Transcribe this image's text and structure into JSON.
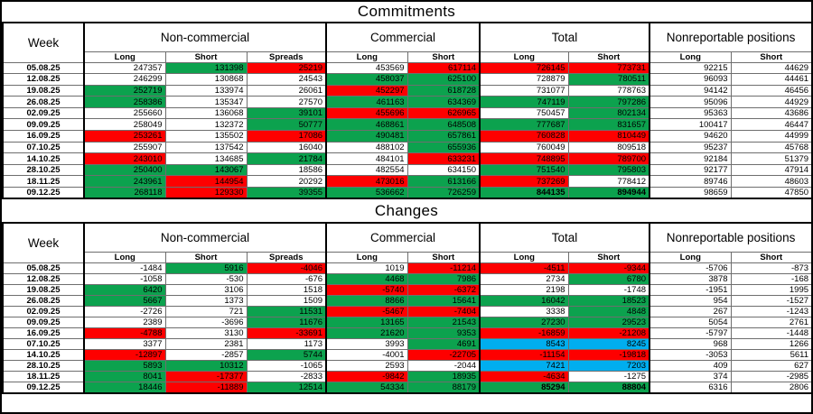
{
  "colors": {
    "green": "#0CA24E",
    "red": "#FE0000",
    "blue": "#00AEEF"
  },
  "column_headers": {
    "week": "Week",
    "groups": [
      "Non-commercial",
      "Commercial",
      "Total",
      "Nonreportable positions"
    ],
    "sub": [
      "Long",
      "Short",
      "Spreads",
      "Long",
      "Short",
      "Long",
      "Short",
      "Long",
      "Short"
    ]
  },
  "sections": [
    {
      "title": "Commitments",
      "rows": [
        {
          "week": "05.08.25",
          "cells": [
            [
              "247357",
              "w"
            ],
            [
              "131398",
              "g"
            ],
            [
              "25219",
              "r"
            ],
            [
              "453569",
              "w"
            ],
            [
              "617114",
              "r"
            ],
            [
              "726145",
              "r"
            ],
            [
              "773731",
              "r"
            ],
            [
              "92215",
              "w"
            ],
            [
              "44629",
              "w"
            ]
          ]
        },
        {
          "week": "12.08.25",
          "cells": [
            [
              "246299",
              "w"
            ],
            [
              "130868",
              "w"
            ],
            [
              "24543",
              "w"
            ],
            [
              "458037",
              "g"
            ],
            [
              "625100",
              "g"
            ],
            [
              "728879",
              "w"
            ],
            [
              "780511",
              "g"
            ],
            [
              "96093",
              "w"
            ],
            [
              "44461",
              "w"
            ]
          ]
        },
        {
          "week": "19.08.25",
          "cells": [
            [
              "252719",
              "g"
            ],
            [
              "133974",
              "w"
            ],
            [
              "26061",
              "w"
            ],
            [
              "452297",
              "r"
            ],
            [
              "618728",
              "g"
            ],
            [
              "731077",
              "w"
            ],
            [
              "778763",
              "w"
            ],
            [
              "94142",
              "w"
            ],
            [
              "46456",
              "w"
            ]
          ]
        },
        {
          "week": "26.08.25",
          "cells": [
            [
              "258386",
              "g"
            ],
            [
              "135347",
              "w"
            ],
            [
              "27570",
              "w"
            ],
            [
              "461163",
              "g"
            ],
            [
              "634369",
              "g"
            ],
            [
              "747119",
              "g"
            ],
            [
              "797286",
              "g"
            ],
            [
              "95096",
              "w"
            ],
            [
              "44929",
              "w"
            ]
          ]
        },
        {
          "week": "02.09.25",
          "cells": [
            [
              "255660",
              "w"
            ],
            [
              "136068",
              "w"
            ],
            [
              "39101",
              "g"
            ],
            [
              "455696",
              "r"
            ],
            [
              "626965",
              "r"
            ],
            [
              "750457",
              "w"
            ],
            [
              "802134",
              "g"
            ],
            [
              "95363",
              "w"
            ],
            [
              "43686",
              "w"
            ]
          ]
        },
        {
          "week": "09.09.25",
          "cells": [
            [
              "258049",
              "w"
            ],
            [
              "132372",
              "w"
            ],
            [
              "50777",
              "g"
            ],
            [
              "468861",
              "g"
            ],
            [
              "648508",
              "g"
            ],
            [
              "777687",
              "g"
            ],
            [
              "831657",
              "g"
            ],
            [
              "100417",
              "w"
            ],
            [
              "46447",
              "w"
            ]
          ]
        },
        {
          "week": "16.09.25",
          "cells": [
            [
              "253261",
              "r"
            ],
            [
              "135502",
              "w"
            ],
            [
              "17086",
              "r"
            ],
            [
              "490481",
              "g"
            ],
            [
              "657861",
              "g"
            ],
            [
              "760828",
              "r"
            ],
            [
              "810449",
              "r"
            ],
            [
              "94620",
              "w"
            ],
            [
              "44999",
              "w"
            ]
          ]
        },
        {
          "week": "07.10.25",
          "cells": [
            [
              "255907",
              "w"
            ],
            [
              "137542",
              "w"
            ],
            [
              "16040",
              "w"
            ],
            [
              "488102",
              "w"
            ],
            [
              "655936",
              "g"
            ],
            [
              "760049",
              "w"
            ],
            [
              "809518",
              "w"
            ],
            [
              "95237",
              "w"
            ],
            [
              "45768",
              "w"
            ]
          ]
        },
        {
          "week": "14.10.25",
          "cells": [
            [
              "243010",
              "r"
            ],
            [
              "134685",
              "w"
            ],
            [
              "21784",
              "g"
            ],
            [
              "484101",
              "w"
            ],
            [
              "633231",
              "r"
            ],
            [
              "748895",
              "r"
            ],
            [
              "789700",
              "r"
            ],
            [
              "92184",
              "w"
            ],
            [
              "51379",
              "w"
            ]
          ]
        },
        {
          "week": "28.10.25",
          "cells": [
            [
              "250400",
              "g"
            ],
            [
              "143067",
              "g"
            ],
            [
              "18586",
              "w"
            ],
            [
              "482554",
              "w"
            ],
            [
              "634150",
              "w"
            ],
            [
              "751540",
              "g"
            ],
            [
              "795803",
              "g"
            ],
            [
              "92177",
              "w"
            ],
            [
              "47914",
              "w"
            ]
          ]
        },
        {
          "week": "18.11.25",
          "cells": [
            [
              "243961",
              "g"
            ],
            [
              "144954",
              "r"
            ],
            [
              "20292",
              "w"
            ],
            [
              "473016",
              "r"
            ],
            [
              "613166",
              "g"
            ],
            [
              "737269",
              "r"
            ],
            [
              "778412",
              "w"
            ],
            [
              "89746",
              "w"
            ],
            [
              "48603",
              "w"
            ]
          ]
        },
        {
          "week": "09.12.25",
          "cells": [
            [
              "268118",
              "g"
            ],
            [
              "129330",
              "r"
            ],
            [
              "39355",
              "g"
            ],
            [
              "536662",
              "g"
            ],
            [
              "726259",
              "g"
            ],
            [
              "844135",
              "g",
              1
            ],
            [
              "894944",
              "g",
              1
            ],
            [
              "98659",
              "w"
            ],
            [
              "47850",
              "w"
            ]
          ]
        }
      ]
    },
    {
      "title": "Changes",
      "rows": [
        {
          "week": "05.08.25",
          "cells": [
            [
              "-1484",
              "w"
            ],
            [
              "5916",
              "g"
            ],
            [
              "-4046",
              "r"
            ],
            [
              "1019",
              "w"
            ],
            [
              "-11214",
              "r"
            ],
            [
              "-4511",
              "r"
            ],
            [
              "-9344",
              "r"
            ],
            [
              "-5706",
              "w"
            ],
            [
              "-873",
              "w"
            ]
          ]
        },
        {
          "week": "12.08.25",
          "cells": [
            [
              "-1058",
              "w"
            ],
            [
              "-530",
              "w"
            ],
            [
              "-676",
              "w"
            ],
            [
              "4468",
              "g"
            ],
            [
              "7986",
              "g"
            ],
            [
              "2734",
              "w"
            ],
            [
              "6780",
              "g"
            ],
            [
              "3878",
              "w"
            ],
            [
              "-168",
              "w"
            ]
          ]
        },
        {
          "week": "19.08.25",
          "cells": [
            [
              "6420",
              "g"
            ],
            [
              "3106",
              "w"
            ],
            [
              "1518",
              "w"
            ],
            [
              "-5740",
              "r"
            ],
            [
              "-6372",
              "r"
            ],
            [
              "2198",
              "w"
            ],
            [
              "-1748",
              "w"
            ],
            [
              "-1951",
              "w"
            ],
            [
              "1995",
              "w"
            ]
          ]
        },
        {
          "week": "26.08.25",
          "cells": [
            [
              "5667",
              "g"
            ],
            [
              "1373",
              "w"
            ],
            [
              "1509",
              "w"
            ],
            [
              "8866",
              "g"
            ],
            [
              "15641",
              "g"
            ],
            [
              "16042",
              "g"
            ],
            [
              "18523",
              "g"
            ],
            [
              "954",
              "w"
            ],
            [
              "-1527",
              "w"
            ]
          ]
        },
        {
          "week": "02.09.25",
          "cells": [
            [
              "-2726",
              "w"
            ],
            [
              "721",
              "w"
            ],
            [
              "11531",
              "g"
            ],
            [
              "-5467",
              "r"
            ],
            [
              "-7404",
              "r"
            ],
            [
              "3338",
              "w"
            ],
            [
              "4848",
              "g"
            ],
            [
              "267",
              "w"
            ],
            [
              "-1243",
              "w"
            ]
          ]
        },
        {
          "week": "09.09.25",
          "cells": [
            [
              "2389",
              "w"
            ],
            [
              "-3696",
              "w"
            ],
            [
              "11676",
              "g"
            ],
            [
              "13165",
              "g"
            ],
            [
              "21543",
              "g"
            ],
            [
              "27230",
              "g"
            ],
            [
              "29523",
              "g"
            ],
            [
              "5054",
              "w"
            ],
            [
              "2761",
              "w"
            ]
          ]
        },
        {
          "week": "16.09.25",
          "cells": [
            [
              "-4788",
              "r"
            ],
            [
              "3130",
              "w"
            ],
            [
              "-33691",
              "r"
            ],
            [
              "21620",
              "g"
            ],
            [
              "9353",
              "g"
            ],
            [
              "-16859",
              "r"
            ],
            [
              "-21208",
              "r"
            ],
            [
              "-5797",
              "w"
            ],
            [
              "-1448",
              "w"
            ]
          ]
        },
        {
          "week": "07.10.25",
          "cells": [
            [
              "3377",
              "w"
            ],
            [
              "2381",
              "w"
            ],
            [
              "1173",
              "w"
            ],
            [
              "3993",
              "w"
            ],
            [
              "4691",
              "g"
            ],
            [
              "8543",
              "b"
            ],
            [
              "8245",
              "b"
            ],
            [
              "968",
              "w"
            ],
            [
              "1266",
              "w"
            ]
          ]
        },
        {
          "week": "14.10.25",
          "cells": [
            [
              "-12897",
              "r"
            ],
            [
              "-2857",
              "w"
            ],
            [
              "5744",
              "g"
            ],
            [
              "-4001",
              "w"
            ],
            [
              "-22705",
              "r"
            ],
            [
              "-11154",
              "r"
            ],
            [
              "-19818",
              "r"
            ],
            [
              "-3053",
              "w"
            ],
            [
              "5611",
              "w"
            ]
          ]
        },
        {
          "week": "28.10.25",
          "cells": [
            [
              "5893",
              "g"
            ],
            [
              "10312",
              "g"
            ],
            [
              "-1065",
              "w"
            ],
            [
              "2593",
              "w"
            ],
            [
              "-2044",
              "w"
            ],
            [
              "7421",
              "b"
            ],
            [
              "7203",
              "b"
            ],
            [
              "409",
              "w"
            ],
            [
              "627",
              "w"
            ]
          ]
        },
        {
          "week": "18.11.25",
          "cells": [
            [
              "8041",
              "g"
            ],
            [
              "-17377",
              "r"
            ],
            [
              "-2833",
              "w"
            ],
            [
              "-9842",
              "r"
            ],
            [
              "18935",
              "g"
            ],
            [
              "-4634",
              "r"
            ],
            [
              "-1275",
              "w"
            ],
            [
              "374",
              "w"
            ],
            [
              "-2985",
              "w"
            ]
          ]
        },
        {
          "week": "09.12.25",
          "cells": [
            [
              "18446",
              "g"
            ],
            [
              "-11889",
              "r"
            ],
            [
              "12514",
              "g"
            ],
            [
              "54334",
              "g"
            ],
            [
              "88179",
              "g"
            ],
            [
              "85294",
              "g",
              1
            ],
            [
              "88804",
              "g",
              1
            ],
            [
              "6316",
              "w"
            ],
            [
              "2806",
              "w"
            ]
          ]
        }
      ]
    }
  ]
}
